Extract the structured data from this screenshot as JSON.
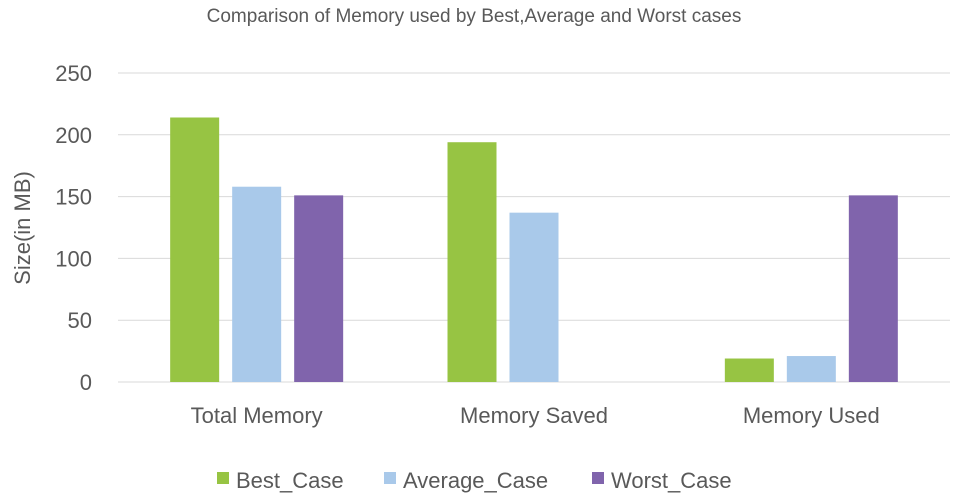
{
  "chart_data": {
    "type": "bar",
    "title": "Comparison of Memory used by Best,Average and Worst cases",
    "xlabel": "",
    "ylabel": "Size(in MB)",
    "ylim": [
      0,
      250
    ],
    "yticks": [
      0,
      50,
      100,
      150,
      200,
      250
    ],
    "categories": [
      "Total Memory",
      "Memory Saved",
      "Memory Used"
    ],
    "series": [
      {
        "name": "Best_Case",
        "color": "#97c443",
        "values": [
          214,
          194,
          19
        ]
      },
      {
        "name": "Average_Case",
        "color": "#a9c9ea",
        "values": [
          158,
          137,
          21
        ]
      },
      {
        "name": "Worst_Case",
        "color": "#8064ac",
        "values": [
          151,
          0,
          151
        ]
      }
    ],
    "grid": true,
    "legend_position": "bottom"
  }
}
